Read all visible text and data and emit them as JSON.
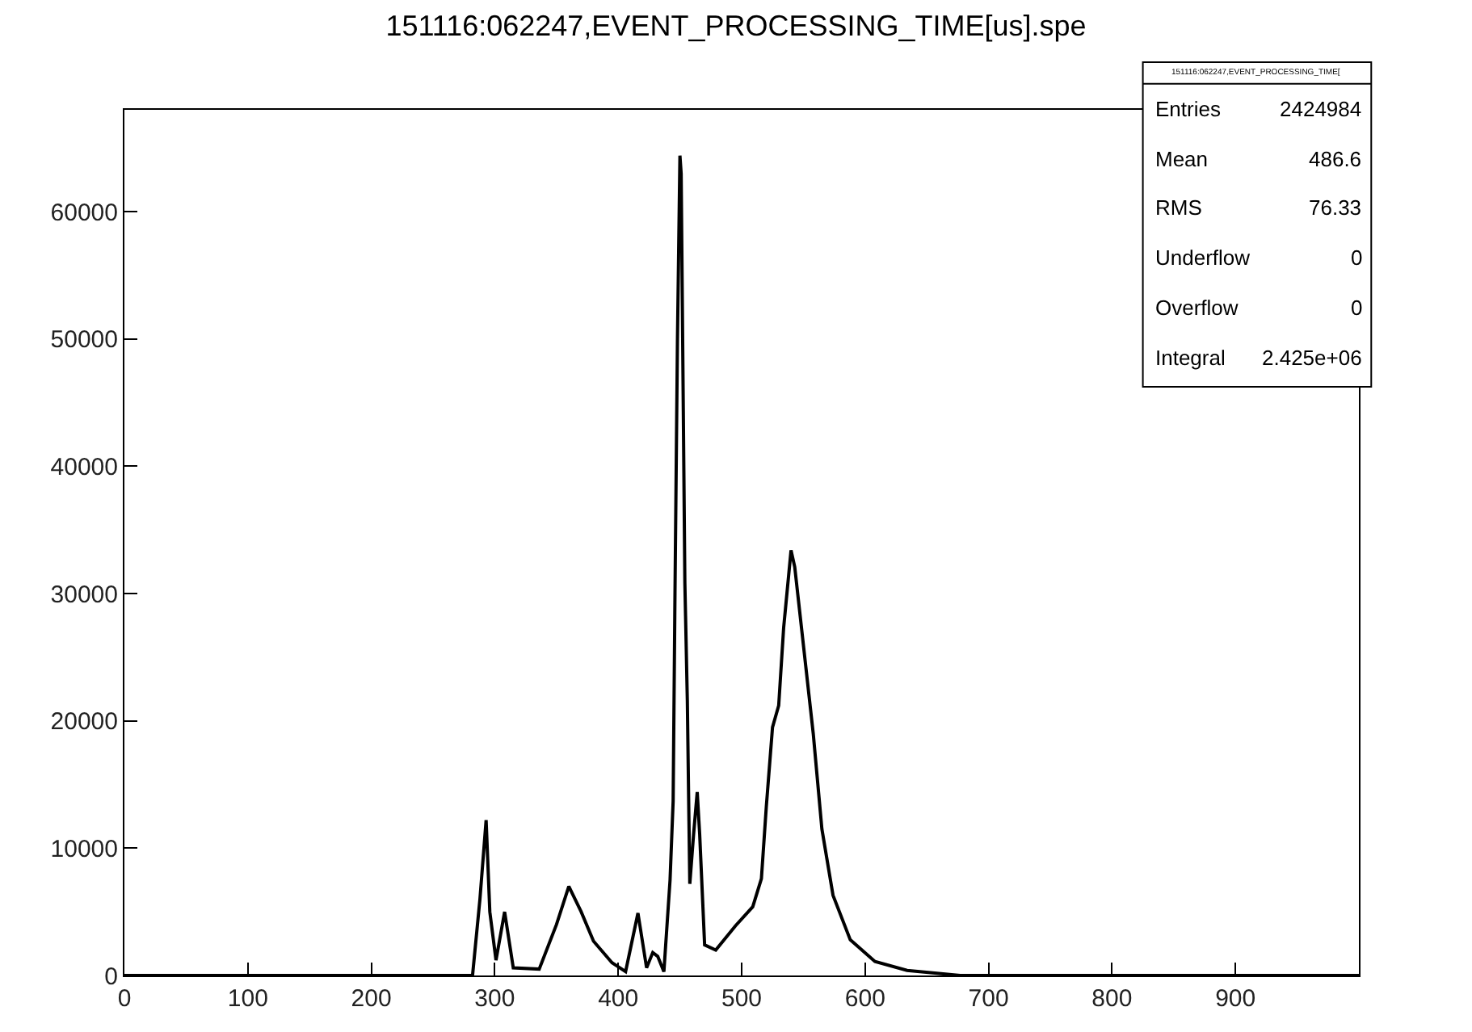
{
  "chart_data": {
    "type": "line",
    "title": "151116:062247,EVENT_PROCESSING_TIME[us].spe",
    "x": [
      0,
      270,
      282,
      288,
      293,
      296,
      301,
      308,
      315,
      336,
      350,
      360,
      370,
      380,
      395,
      406,
      416,
      423,
      428,
      432,
      437,
      442,
      444.5,
      446,
      448,
      450,
      451,
      454,
      456,
      458,
      461,
      464,
      466,
      470,
      479,
      495,
      509,
      516,
      520,
      525,
      530,
      534,
      540,
      543,
      551,
      558,
      565,
      574,
      588,
      608,
      634,
      677,
      1000
    ],
    "series": [
      {
        "color": "#000000",
        "values": [
          0,
          0,
          0,
          6000,
          12200,
          5000,
          1200,
          5000,
          600,
          500,
          4000,
          7000,
          5000,
          2700,
          1000,
          300,
          4900,
          600,
          1800,
          1500,
          300,
          7500,
          13700,
          30000,
          50000,
          64400,
          63000,
          30800,
          21600,
          7200,
          11000,
          14400,
          11100,
          2400,
          2000,
          3900,
          5400,
          7600,
          13300,
          19500,
          21200,
          27300,
          33400,
          32100,
          25100,
          19000,
          11500,
          6300,
          2800,
          1100,
          400,
          0,
          0
        ]
      }
    ],
    "xlim": [
      0,
      1000
    ],
    "xticks": [
      0,
      100,
      200,
      300,
      400,
      500,
      600,
      700,
      800,
      900
    ],
    "ylim": [
      0,
      68000
    ],
    "yticks": [
      0,
      10000,
      20000,
      30000,
      40000,
      50000,
      60000
    ],
    "marker": "none",
    "line_style": "solid",
    "annotations": [
      "151116:062247,EVENT_PROCESSING_TIME[",
      "Entries",
      "2424984",
      "Mean",
      "486.6",
      "RMS",
      "76.33",
      "Underflow",
      "0",
      "Overflow",
      "0",
      "Integral",
      "2.425e+06"
    ]
  }
}
